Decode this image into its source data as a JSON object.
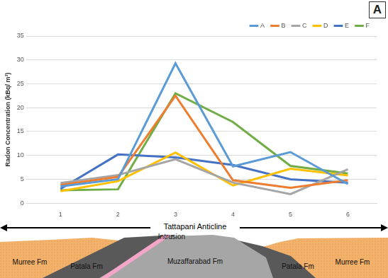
{
  "chart_data": {
    "type": "line",
    "categories": [
      "1",
      "2",
      "3",
      "4",
      "5",
      "6"
    ],
    "y_label": "Radon Concentration (kBq/ m³)",
    "ylim": [
      0,
      35
    ],
    "yticks": [
      0,
      5,
      10,
      15,
      20,
      25,
      30,
      35
    ],
    "grid": true,
    "legend": "upper right",
    "marker": "none",
    "line_style": "solid",
    "series": [
      {
        "name": "A",
        "color": "#5b9bd5",
        "values": [
          3.5,
          5,
          29.3,
          7.7,
          10.7,
          4
        ]
      },
      {
        "name": "B",
        "color": "#ed7d31",
        "values": [
          3.8,
          5.5,
          22.5,
          4.8,
          3.2,
          4.8
        ]
      },
      {
        "name": "C",
        "color": "#a5a5a5",
        "values": [
          4.2,
          5.9,
          9.2,
          4.3,
          1.9,
          7.1
        ]
      },
      {
        "name": "D",
        "color": "#ffc000",
        "values": [
          2.5,
          4.6,
          10.6,
          3.7,
          7.2,
          5.8
        ]
      },
      {
        "name": "E",
        "color": "#4472c4",
        "values": [
          3,
          10.2,
          9.6,
          8,
          5,
          4.3
        ]
      },
      {
        "name": "F",
        "color": "#70ad47",
        "values": [
          2.7,
          2.9,
          23,
          17,
          7.8,
          6.2
        ]
      }
    ]
  },
  "panel_label": "A",
  "cross_section": {
    "title": "Tattapani Anticline",
    "units": [
      "Murree Fm",
      "Patala Fm",
      "Intrusion",
      "Muzaffarabad Fm",
      "Patala Fm",
      "Murree Fm"
    ]
  }
}
